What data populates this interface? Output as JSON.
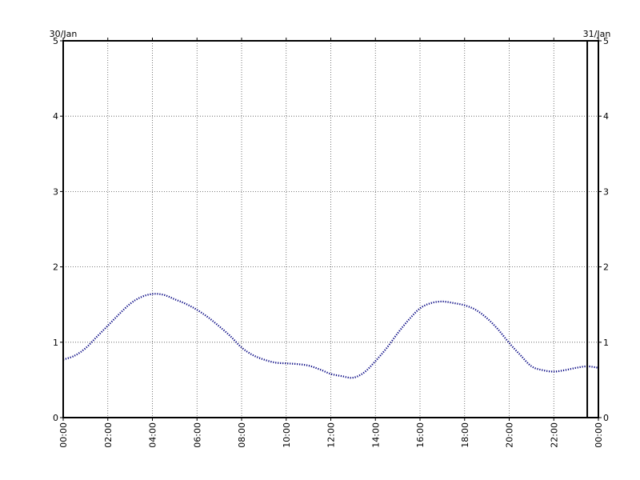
{
  "chart_data": {
    "type": "line",
    "title": "",
    "xlabel": "",
    "ylabel": "",
    "date_labels": {
      "start": "30/Jan",
      "end": "31/Jan"
    },
    "x_tick_labels": [
      "00:00",
      "02:00",
      "04:00",
      "06:00",
      "08:00",
      "10:00",
      "12:00",
      "14:00",
      "16:00",
      "18:00",
      "20:00",
      "22:00",
      "00:00"
    ],
    "y_tick_labels": [
      "0",
      "1",
      "2",
      "3",
      "4",
      "5"
    ],
    "xlim": [
      "30/Jan 00:00",
      "31/Jan 00:00"
    ],
    "ylim": [
      0,
      5
    ],
    "grid": true,
    "current_time_marker": "23:30",
    "series": [
      {
        "color": "#000080",
        "x": [
          "00:00",
          "00:30",
          "01:00",
          "01:30",
          "02:00",
          "02:30",
          "03:00",
          "03:30",
          "04:00",
          "04:30",
          "05:00",
          "05:30",
          "06:00",
          "06:30",
          "07:00",
          "07:30",
          "08:00",
          "08:30",
          "09:00",
          "09:30",
          "10:00",
          "10:30",
          "11:00",
          "11:30",
          "12:00",
          "12:30",
          "13:00",
          "13:30",
          "14:00",
          "14:30",
          "15:00",
          "15:30",
          "16:00",
          "16:30",
          "17:00",
          "17:30",
          "18:00",
          "18:30",
          "19:00",
          "19:30",
          "20:00",
          "20:30",
          "21:00",
          "21:30",
          "22:00",
          "22:30",
          "23:00",
          "23:30",
          "24:00"
        ],
        "y": [
          0.77,
          0.82,
          0.92,
          1.07,
          1.22,
          1.37,
          1.51,
          1.6,
          1.64,
          1.63,
          1.57,
          1.51,
          1.43,
          1.33,
          1.21,
          1.08,
          0.93,
          0.83,
          0.77,
          0.73,
          0.72,
          0.71,
          0.69,
          0.64,
          0.58,
          0.55,
          0.53,
          0.6,
          0.75,
          0.92,
          1.12,
          1.3,
          1.45,
          1.52,
          1.54,
          1.52,
          1.49,
          1.43,
          1.32,
          1.17,
          0.99,
          0.83,
          0.68,
          0.63,
          0.61,
          0.63,
          0.66,
          0.68,
          0.66
        ]
      }
    ]
  }
}
